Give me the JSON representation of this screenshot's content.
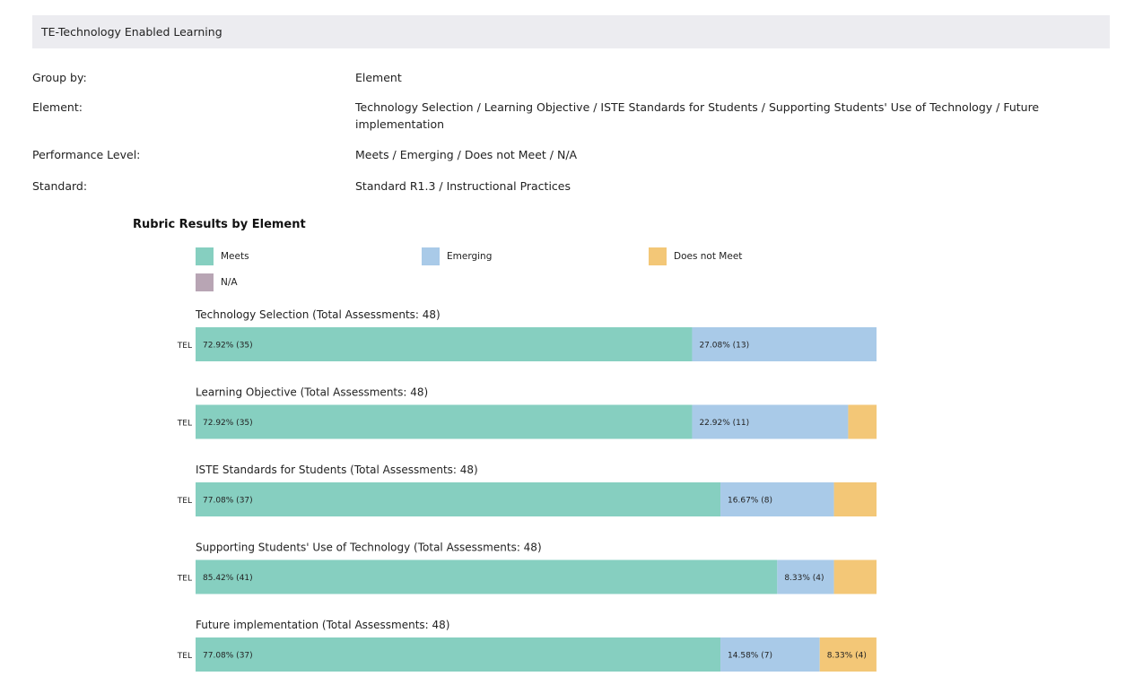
{
  "header": {
    "title": "TE-Technology Enabled Learning"
  },
  "filters": [
    {
      "label": "Group by:",
      "value": "Element"
    },
    {
      "label": "Element:",
      "value": "Technology Selection / Learning Objective / ISTE Standards for Students / Supporting Students' Use of Technology / Future implementation"
    },
    {
      "label": "Performance Level:",
      "value": "Meets / Emerging / Does not Meet / N/A"
    },
    {
      "label": "Standard:",
      "value": "Standard R1.3 / Instructional Practices"
    }
  ],
  "colors": {
    "Meets": "#86cfc0",
    "Emerging": "#a9cae8",
    "Does not Meet": "#f3c777",
    "N/A": "#b8a5b4"
  },
  "chart_data": {
    "type": "bar",
    "orientation": "horizontal",
    "stacked": true,
    "title": "Rubric Results by Element",
    "legend": [
      "Meets",
      "Emerging",
      "Does not Meet",
      "N/A"
    ],
    "legend_position": "top",
    "xlim": [
      0,
      100
    ],
    "groups": [
      {
        "title": "Technology Selection (Total Assessments: 48)",
        "category": "TEL",
        "segments": [
          {
            "series": "Meets",
            "percent": 72.92,
            "count": 35,
            "label": "72.92% (35)"
          },
          {
            "series": "Emerging",
            "percent": 27.08,
            "count": 13,
            "label": "27.08% (13)"
          }
        ]
      },
      {
        "title": "Learning Objective (Total Assessments: 48)",
        "category": "TEL",
        "segments": [
          {
            "series": "Meets",
            "percent": 72.92,
            "count": 35,
            "label": "72.92% (35)"
          },
          {
            "series": "Emerging",
            "percent": 22.92,
            "count": 11,
            "label": "22.92% (11)"
          },
          {
            "series": "Does not Meet",
            "percent": 4.17,
            "count": 2,
            "label": ""
          }
        ]
      },
      {
        "title": "ISTE Standards for Students (Total Assessments: 48)",
        "category": "TEL",
        "segments": [
          {
            "series": "Meets",
            "percent": 77.08,
            "count": 37,
            "label": "77.08% (37)"
          },
          {
            "series": "Emerging",
            "percent": 16.67,
            "count": 8,
            "label": "16.67% (8)"
          },
          {
            "series": "Does not Meet",
            "percent": 6.25,
            "count": 3,
            "label": ""
          }
        ]
      },
      {
        "title": "Supporting Students' Use of Technology (Total Assessments: 48)",
        "category": "TEL",
        "segments": [
          {
            "series": "Meets",
            "percent": 85.42,
            "count": 41,
            "label": "85.42% (41)"
          },
          {
            "series": "Emerging",
            "percent": 8.33,
            "count": 4,
            "label": "8.33% (4)"
          },
          {
            "series": "Does not Meet",
            "percent": 6.25,
            "count": 3,
            "label": ""
          }
        ]
      },
      {
        "title": "Future implementation (Total Assessments: 48)",
        "category": "TEL",
        "segments": [
          {
            "series": "Meets",
            "percent": 77.08,
            "count": 37,
            "label": "77.08% (37)"
          },
          {
            "series": "Emerging",
            "percent": 14.58,
            "count": 7,
            "label": "14.58% (7)"
          },
          {
            "series": "Does not Meet",
            "percent": 8.33,
            "count": 4,
            "label": "8.33% (4)"
          }
        ]
      }
    ]
  }
}
